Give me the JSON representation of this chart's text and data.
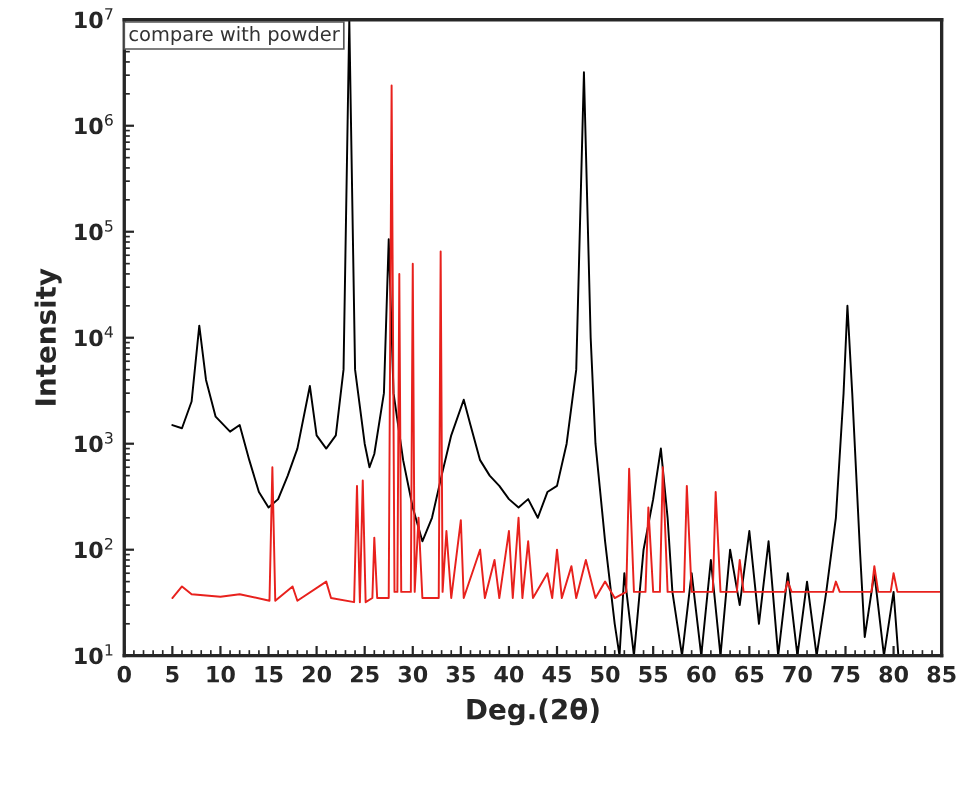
{
  "chart_data": {
    "type": "line",
    "xlabel": "Deg.(2θ)",
    "ylabel": "Intensity",
    "annotations": [
      "compare with powder"
    ],
    "log": "y",
    "xlim": [
      0,
      85
    ],
    "ylim": [
      10,
      10000000
    ],
    "xticks": [
      0,
      5,
      10,
      15,
      20,
      25,
      30,
      35,
      40,
      45,
      50,
      55,
      60,
      65,
      70,
      75,
      80,
      85
    ],
    "yticks": [
      {
        "value": 10,
        "label": "10$^{1}$"
      },
      {
        "value": 100,
        "label": "10$^{2}$"
      },
      {
        "value": 1000,
        "label": "10$^{3}$"
      },
      {
        "value": 10000,
        "label": "10$^{4}$"
      },
      {
        "value": 100000,
        "label": "10$^{5}$"
      },
      {
        "value": 1000000,
        "label": "10$^{6}$"
      },
      {
        "value": 10000000,
        "label": "10$^{7}$"
      }
    ],
    "grid": false,
    "legend": false,
    "marker": "none",
    "line_style": "solid",
    "series": [
      {
        "color": "#000000",
        "x": [
          5.0,
          6,
          7,
          7.8,
          8.5,
          9.5,
          11,
          12,
          13,
          14,
          15,
          16,
          17,
          18,
          19.3,
          20,
          21,
          22,
          22.8,
          23.4,
          24,
          25,
          25.5,
          26,
          27,
          27.5,
          28,
          29,
          30,
          31,
          32,
          33,
          34,
          35.3,
          36,
          37,
          38,
          39,
          40,
          41,
          42,
          43,
          44,
          45,
          46,
          47,
          47.8,
          48.5,
          49,
          50,
          51,
          51.5,
          52,
          53,
          54,
          55,
          55.8,
          56.5,
          57,
          58,
          59,
          60,
          61,
          62,
          63,
          64,
          65,
          66,
          67,
          68,
          69,
          70,
          71,
          72,
          73,
          74,
          74.8,
          75.2,
          75.7,
          76.5,
          77,
          78,
          79,
          80,
          80.5
        ],
        "values": [
          1500,
          1400,
          2500,
          13000,
          4000,
          1800,
          1300,
          1500,
          700,
          350,
          250,
          300,
          500,
          900,
          3500,
          1200,
          900,
          1200,
          5000,
          10000000,
          5000,
          1000,
          600,
          800,
          3000,
          85000,
          3000,
          700,
          250,
          120,
          200,
          500,
          1200,
          2600,
          1500,
          700,
          500,
          400,
          300,
          250,
          300,
          200,
          350,
          400,
          1000,
          5000,
          3200000,
          10000,
          1000,
          120,
          20,
          10,
          60,
          10,
          100,
          300,
          900,
          200,
          40,
          10,
          60,
          10,
          80,
          10,
          100,
          30,
          150,
          20,
          120,
          10,
          60,
          10,
          50,
          10,
          40,
          200,
          3000,
          20000,
          3000,
          100,
          15,
          60,
          10,
          40,
          10
        ]
      },
      {
        "color": "#e8211d",
        "x": [
          5,
          6,
          7,
          10,
          12,
          15.1,
          15.4,
          15.7,
          17.5,
          18,
          21,
          21.5,
          23.9,
          24.2,
          24.5,
          24.8,
          25.1,
          25.8,
          26,
          26.3,
          27.5,
          27.8,
          28.1,
          28.4,
          28.6,
          28.8,
          29.8,
          30.0,
          30.2,
          30.6,
          31,
          32.7,
          32.9,
          33.1,
          33.5,
          34,
          35,
          35.3,
          37,
          37.5,
          38.5,
          39,
          40,
          40.4,
          41,
          41.4,
          42,
          42.5,
          44,
          44.5,
          45,
          45.5,
          46.5,
          47,
          48,
          49,
          50,
          51,
          52.2,
          52.5,
          53,
          54.2,
          54.5,
          55,
          55.7,
          56,
          56.5,
          58.2,
          58.5,
          59,
          61.2,
          61.5,
          62,
          63.7,
          64,
          64.4,
          66,
          68.7,
          69,
          69.4,
          72,
          73.7,
          74,
          74.4,
          76,
          77.7,
          78,
          78.4,
          79.7,
          80,
          80.4,
          82,
          85
        ],
        "values": [
          35,
          45,
          38,
          36,
          38,
          33,
          600,
          33,
          45,
          33,
          50,
          35,
          32,
          400,
          32,
          450,
          32,
          35,
          130,
          35,
          35,
          2400000,
          40,
          40,
          40000,
          40,
          40,
          50000,
          40,
          200,
          35,
          35,
          65000,
          40,
          150,
          35,
          190,
          35,
          100,
          35,
          80,
          35,
          150,
          35,
          200,
          35,
          120,
          35,
          60,
          35,
          100,
          35,
          70,
          35,
          80,
          35,
          50,
          35,
          40,
          580,
          40,
          40,
          250,
          40,
          40,
          600,
          40,
          40,
          400,
          40,
          40,
          350,
          40,
          40,
          80,
          40,
          40,
          40,
          50,
          40,
          40,
          40,
          50,
          40,
          40,
          40,
          70,
          40,
          40,
          60,
          40,
          40,
          40
        ]
      }
    ]
  }
}
